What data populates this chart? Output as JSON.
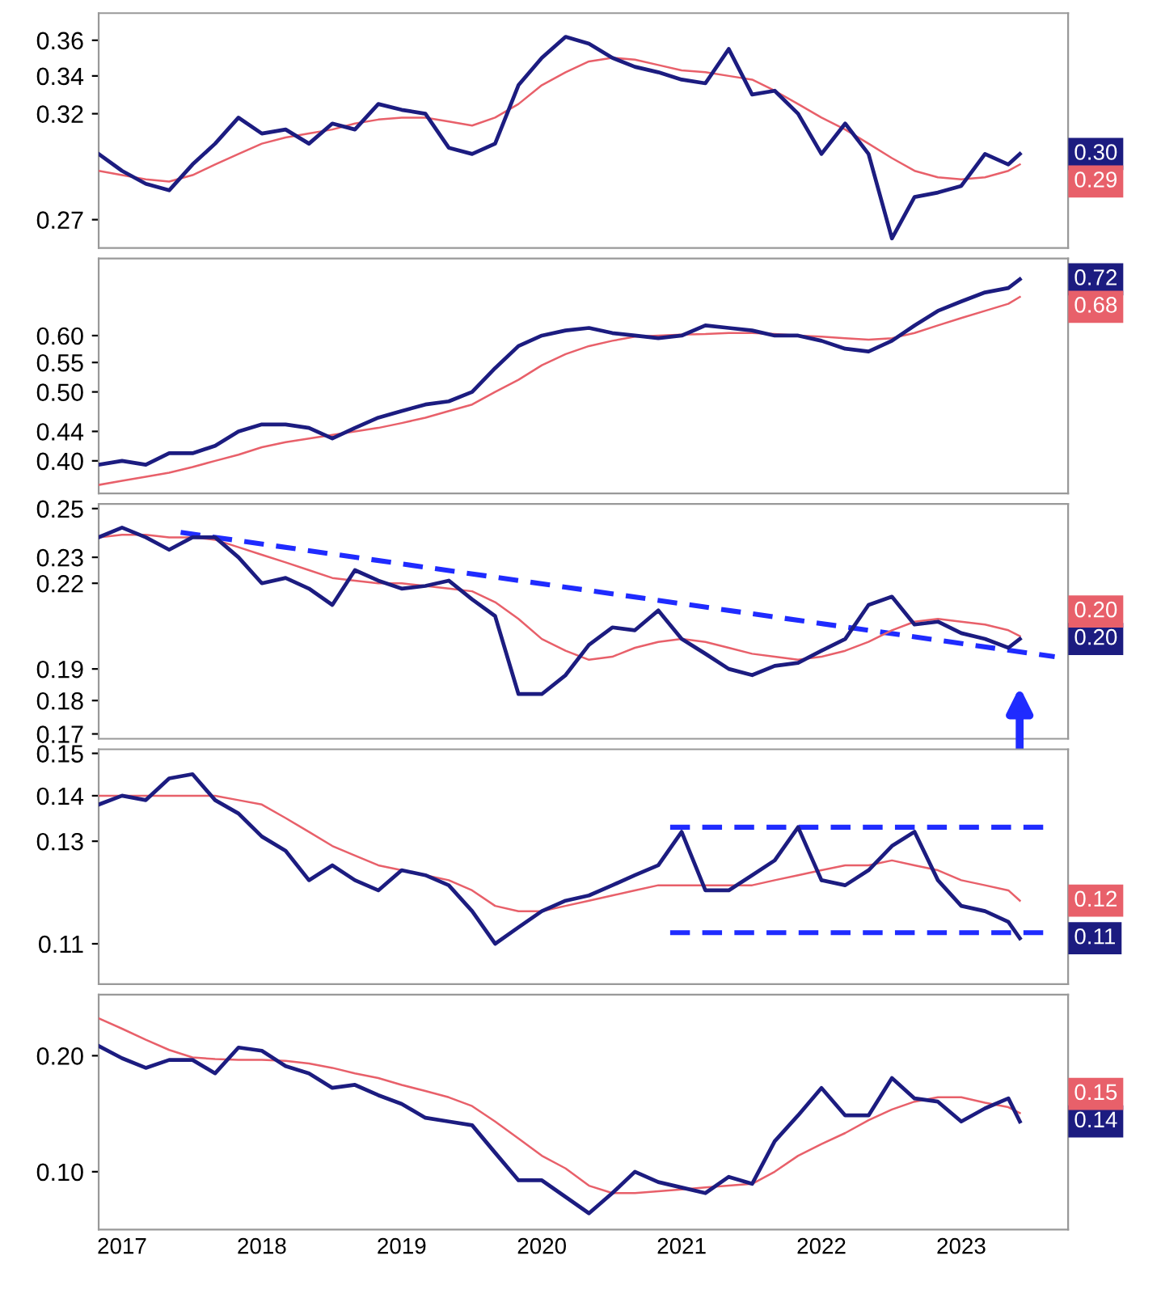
{
  "chart_data": [
    {
      "type": "line",
      "log": true,
      "tick_labels": "y",
      "x": [
        "2017-05",
        "2017-07",
        "2017-09",
        "2017-11",
        "2018-01",
        "2018-03",
        "2018-05",
        "2018-07",
        "2018-09",
        "2018-11",
        "2019-01",
        "2019-03",
        "2019-05",
        "2019-07",
        "2019-09",
        "2019-11",
        "2020-01",
        "2020-03",
        "2020-05",
        "2020-07",
        "2020-09",
        "2020-11",
        "2021-01",
        "2021-03",
        "2021-05",
        "2021-07",
        "2021-09",
        "2021-11",
        "2022-01",
        "2022-03",
        "2022-05",
        "2022-07",
        "2022-09",
        "2022-11",
        "2023-01",
        "2023-03",
        "2023-05",
        "2023-07",
        "2023-09",
        "2023-11",
        "2023-12"
      ],
      "xlim": [
        "2017-05-01",
        "2024-04-05"
      ],
      "ylim": [
        0.258,
        0.376
      ],
      "yticks": [
        0.27,
        0.32,
        0.34,
        0.36
      ],
      "series": [
        {
          "color": "#1c1c80",
          "values": [
            0.3,
            0.292,
            0.286,
            0.283,
            0.295,
            0.305,
            0.318,
            0.31,
            0.312,
            0.305,
            0.315,
            0.312,
            0.325,
            0.322,
            0.32,
            0.303,
            0.3,
            0.305,
            0.335,
            0.35,
            0.362,
            0.358,
            0.35,
            0.345,
            0.342,
            0.338,
            0.336,
            0.355,
            0.33,
            0.332,
            0.32,
            0.3,
            0.315,
            0.3,
            0.262,
            0.28,
            0.282,
            0.285,
            0.3,
            0.295,
            0.3
          ]
        },
        {
          "color": "#e8606a",
          "values": [
            0.292,
            0.29,
            0.288,
            0.287,
            0.29,
            0.295,
            0.3,
            0.305,
            0.308,
            0.31,
            0.312,
            0.315,
            0.317,
            0.318,
            0.318,
            0.316,
            0.314,
            0.318,
            0.325,
            0.335,
            0.342,
            0.348,
            0.35,
            0.349,
            0.346,
            0.343,
            0.342,
            0.34,
            0.338,
            0.332,
            0.325,
            0.318,
            0.312,
            0.305,
            0.298,
            0.292,
            0.289,
            0.288,
            0.289,
            0.292,
            0.295
          ]
        }
      ],
      "annotations": [
        "0.30",
        "0.29"
      ]
    },
    {
      "type": "line",
      "log": true,
      "tick_labels": "y",
      "x": [
        "2017-05",
        "2017-07",
        "2017-09",
        "2017-11",
        "2018-01",
        "2018-03",
        "2018-05",
        "2018-07",
        "2018-09",
        "2018-11",
        "2019-01",
        "2019-03",
        "2019-05",
        "2019-07",
        "2019-09",
        "2019-11",
        "2020-01",
        "2020-03",
        "2020-05",
        "2020-07",
        "2020-09",
        "2020-11",
        "2021-01",
        "2021-03",
        "2021-05",
        "2021-07",
        "2021-09",
        "2021-11",
        "2022-01",
        "2022-03",
        "2022-05",
        "2022-07",
        "2022-09",
        "2022-11",
        "2023-01",
        "2023-03",
        "2023-05",
        "2023-07",
        "2023-09",
        "2023-11",
        "2023-12"
      ],
      "xlim": [
        "2017-05-01",
        "2024-04-05"
      ],
      "ylim": [
        0.36,
        0.77
      ],
      "yticks": [
        {
          "value": 0.4,
          "label": "0.40"
        },
        0.44,
        {
          "value": 0.5,
          "label": "0.50"
        },
        0.55,
        {
          "value": 0.6,
          "label": "0.60"
        }
      ],
      "series": [
        {
          "color": "#1c1c80",
          "values": [
            0.395,
            0.4,
            0.395,
            0.41,
            0.41,
            0.42,
            0.44,
            0.45,
            0.45,
            0.445,
            0.43,
            0.445,
            0.46,
            0.47,
            0.48,
            0.485,
            0.5,
            0.54,
            0.58,
            0.6,
            0.61,
            0.615,
            0.605,
            0.6,
            0.595,
            0.6,
            0.62,
            0.615,
            0.61,
            0.6,
            0.6,
            0.59,
            0.575,
            0.57,
            0.59,
            0.62,
            0.65,
            0.67,
            0.69,
            0.7,
            0.72
          ]
        },
        {
          "color": "#e8606a",
          "values": [
            0.37,
            0.375,
            0.38,
            0.385,
            0.392,
            0.4,
            0.408,
            0.418,
            0.425,
            0.43,
            0.435,
            0.44,
            0.445,
            0.452,
            0.46,
            0.47,
            0.48,
            0.5,
            0.52,
            0.545,
            0.565,
            0.58,
            0.59,
            0.598,
            0.6,
            0.602,
            0.603,
            0.605,
            0.605,
            0.603,
            0.6,
            0.598,
            0.595,
            0.592,
            0.595,
            0.605,
            0.62,
            0.635,
            0.65,
            0.665,
            0.68
          ]
        }
      ],
      "annotations": [
        "0.72",
        "0.68"
      ]
    },
    {
      "type": "line",
      "log": true,
      "tick_labels": "y",
      "x": [
        "2017-05",
        "2017-07",
        "2017-09",
        "2017-11",
        "2018-01",
        "2018-03",
        "2018-05",
        "2018-07",
        "2018-09",
        "2018-11",
        "2019-01",
        "2019-03",
        "2019-05",
        "2019-07",
        "2019-09",
        "2019-11",
        "2020-01",
        "2020-03",
        "2020-05",
        "2020-07",
        "2020-09",
        "2020-11",
        "2021-01",
        "2021-03",
        "2021-05",
        "2021-07",
        "2021-09",
        "2021-11",
        "2022-01",
        "2022-03",
        "2022-05",
        "2022-07",
        "2022-09",
        "2022-11",
        "2023-01",
        "2023-03",
        "2023-05",
        "2023-07",
        "2023-09",
        "2023-11",
        "2023-12"
      ],
      "xlim": [
        "2017-05-01",
        "2024-04-05"
      ],
      "ylim": [
        0.1686,
        0.252
      ],
      "yticks": [
        0.17,
        0.18,
        0.19,
        0.22,
        0.23,
        0.25
      ],
      "series": [
        {
          "color": "#1c1c80",
          "values": [
            0.238,
            0.242,
            0.238,
            0.233,
            0.238,
            0.238,
            0.23,
            0.22,
            0.222,
            0.218,
            0.212,
            0.225,
            0.221,
            0.218,
            0.219,
            0.221,
            0.214,
            0.208,
            0.182,
            0.182,
            0.188,
            0.198,
            0.204,
            0.203,
            0.21,
            0.2,
            0.195,
            0.19,
            0.188,
            0.191,
            0.192,
            0.196,
            0.2,
            0.212,
            0.215,
            0.205,
            0.206,
            0.202,
            0.2,
            0.197,
            0.2
          ]
        },
        {
          "color": "#e8606a",
          "values": [
            0.238,
            0.239,
            0.239,
            0.238,
            0.238,
            0.237,
            0.234,
            0.231,
            0.228,
            0.225,
            0.222,
            0.221,
            0.22,
            0.22,
            0.219,
            0.218,
            0.217,
            0.213,
            0.207,
            0.2,
            0.196,
            0.193,
            0.194,
            0.197,
            0.199,
            0.2,
            0.199,
            0.197,
            0.195,
            0.194,
            0.193,
            0.194,
            0.196,
            0.199,
            0.203,
            0.206,
            0.207,
            0.206,
            0.205,
            0.203,
            0.201
          ]
        },
        {
          "type": "line",
          "color": "#1f2bff",
          "line_style": "dashed",
          "x": [
            "2017-12",
            "2024-03"
          ],
          "values": [
            0.24,
            0.194
          ]
        }
      ],
      "annotations": [
        "0.20",
        "0.20"
      ]
    },
    {
      "type": "line",
      "log": true,
      "tick_labels": "y",
      "x": [
        "2017-05",
        "2017-07",
        "2017-09",
        "2017-11",
        "2018-01",
        "2018-03",
        "2018-05",
        "2018-07",
        "2018-09",
        "2018-11",
        "2019-01",
        "2019-03",
        "2019-05",
        "2019-07",
        "2019-09",
        "2019-11",
        "2020-01",
        "2020-03",
        "2020-05",
        "2020-07",
        "2020-09",
        "2020-11",
        "2021-01",
        "2021-03",
        "2021-05",
        "2021-07",
        "2021-09",
        "2021-11",
        "2022-01",
        "2022-03",
        "2022-05",
        "2022-07",
        "2022-09",
        "2022-11",
        "2023-01",
        "2023-03",
        "2023-05",
        "2023-07",
        "2023-09",
        "2023-11",
        "2023-12"
      ],
      "xlim": [
        "2017-05-01",
        "2024-04-05"
      ],
      "ylim": [
        0.103,
        0.151
      ],
      "yticks": [
        0.11,
        0.13,
        0.14,
        0.15
      ],
      "series": [
        {
          "color": "#1c1c80",
          "values": [
            0.138,
            0.14,
            0.139,
            0.144,
            0.145,
            0.139,
            0.136,
            0.131,
            0.128,
            0.122,
            0.125,
            0.122,
            0.12,
            0.124,
            0.123,
            0.121,
            0.116,
            0.11,
            0.113,
            0.116,
            0.118,
            0.119,
            0.121,
            0.123,
            0.125,
            0.132,
            0.12,
            0.12,
            0.123,
            0.126,
            0.133,
            0.122,
            0.121,
            0.124,
            0.129,
            0.132,
            0.122,
            0.117,
            0.116,
            0.114,
            0.111
          ]
        },
        {
          "color": "#e8606a",
          "values": [
            0.14,
            0.14,
            0.14,
            0.14,
            0.14,
            0.14,
            0.139,
            0.138,
            0.135,
            0.132,
            0.129,
            0.127,
            0.125,
            0.124,
            0.123,
            0.122,
            0.12,
            0.117,
            0.116,
            0.116,
            0.117,
            0.118,
            0.119,
            0.12,
            0.121,
            0.121,
            0.121,
            0.121,
            0.121,
            0.122,
            0.123,
            0.124,
            0.125,
            0.125,
            0.126,
            0.125,
            0.124,
            0.122,
            0.121,
            0.12,
            0.118
          ]
        },
        {
          "type": "line",
          "color": "#1f2bff",
          "line_style": "dashed",
          "x": [
            "2021-06",
            "2024-02"
          ],
          "values": [
            0.133,
            0.133
          ]
        },
        {
          "type": "line",
          "color": "#1f2bff",
          "line_style": "dashed",
          "x": [
            "2021-06",
            "2024-02"
          ],
          "values": [
            0.112,
            0.112
          ]
        }
      ],
      "annotations": [
        "0.11",
        "0.12"
      ]
    },
    {
      "type": "line",
      "log": true,
      "x": [
        "2017-05",
        "2017-07",
        "2017-09",
        "2017-11",
        "2018-01",
        "2018-03",
        "2018-05",
        "2018-07",
        "2018-09",
        "2018-11",
        "2019-01",
        "2019-03",
        "2019-05",
        "2019-07",
        "2019-09",
        "2019-11",
        "2020-01",
        "2020-03",
        "2020-05",
        "2020-07",
        "2020-09",
        "2020-11",
        "2021-01",
        "2021-03",
        "2021-05",
        "2021-07",
        "2021-09",
        "2021-11",
        "2022-01",
        "2022-03",
        "2022-05",
        "2022-07",
        "2022-09",
        "2022-11",
        "2023-01",
        "2023-03",
        "2023-05",
        "2023-07",
        "2023-09",
        "2023-11",
        "2023-12"
      ],
      "xlim": [
        "2017-05-01",
        "2024-04-05"
      ],
      "xticks": [
        {
          "value": "2017-07-01",
          "label": "2017"
        },
        {
          "value": "2018-07-01",
          "label": "2018"
        },
        {
          "value": "2019-07-01",
          "label": "2019"
        },
        {
          "value": "2020-07-01",
          "label": "2020"
        },
        {
          "value": "2021-07-01",
          "label": "2021"
        },
        {
          "value": "2022-07-01",
          "label": "2022"
        },
        {
          "value": "2023-07-01",
          "label": "2023"
        }
      ],
      "ylim": [
        0.0708,
        0.288
      ],
      "yticks": [
        {
          "value": 0.1,
          "label": "0.10"
        },
        {
          "value": 0.2,
          "label": "0.20"
        }
      ],
      "series": [
        {
          "color": "#1c1c80",
          "values": [
            0.212,
            0.197,
            0.186,
            0.195,
            0.195,
            0.18,
            0.21,
            0.206,
            0.188,
            0.18,
            0.165,
            0.168,
            0.158,
            0.15,
            0.138,
            0.135,
            0.132,
            0.112,
            0.095,
            0.095,
            0.086,
            0.078,
            0.088,
            0.1,
            0.094,
            0.091,
            0.088,
            0.097,
            0.093,
            0.12,
            0.14,
            0.165,
            0.14,
            0.14,
            0.175,
            0.155,
            0.152,
            0.135,
            0.146,
            0.155,
            0.135
          ]
        },
        {
          "color": "#e8606a",
          "values": [
            0.25,
            0.235,
            0.22,
            0.207,
            0.198,
            0.196,
            0.195,
            0.195,
            0.194,
            0.191,
            0.186,
            0.18,
            0.175,
            0.168,
            0.162,
            0.156,
            0.148,
            0.135,
            0.122,
            0.11,
            0.102,
            0.092,
            0.088,
            0.088,
            0.089,
            0.09,
            0.091,
            0.092,
            0.093,
            0.1,
            0.11,
            0.118,
            0.126,
            0.136,
            0.145,
            0.152,
            0.156,
            0.156,
            0.151,
            0.147,
            0.142
          ]
        }
      ],
      "annotations": [
        "0.14",
        "0.15"
      ]
    }
  ]
}
